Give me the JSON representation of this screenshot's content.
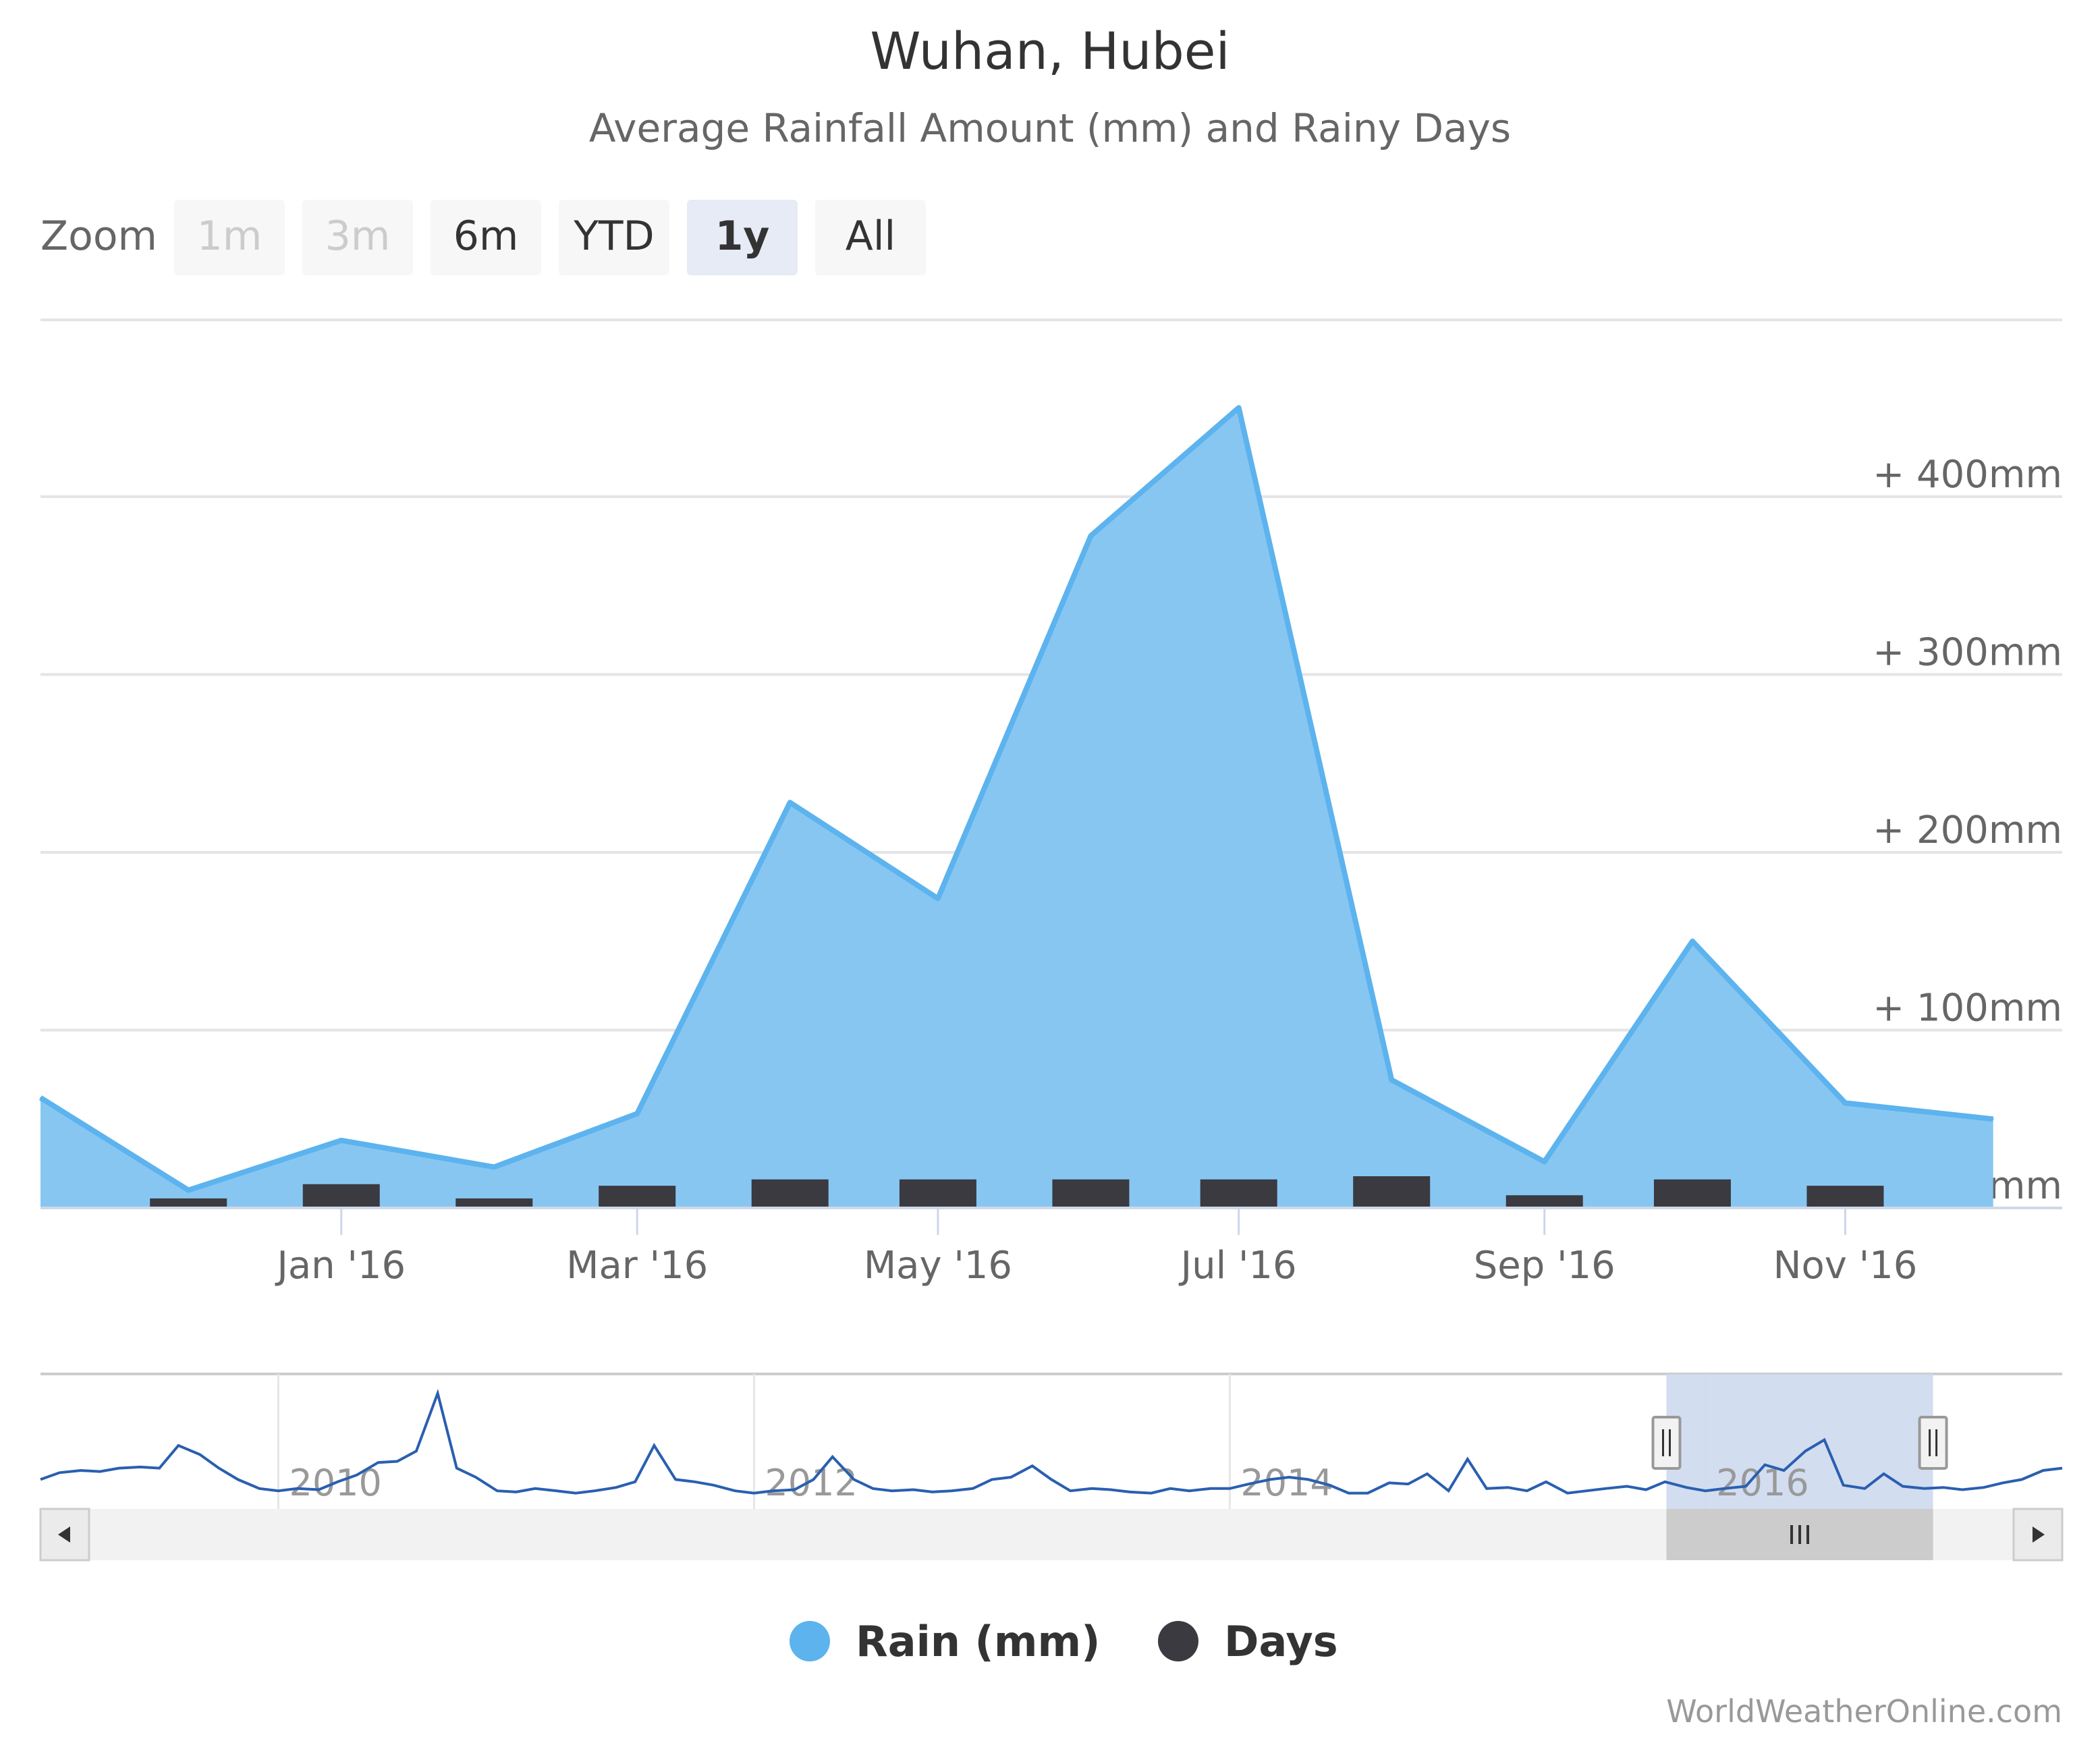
{
  "title": "Wuhan, Hubei",
  "subtitle": "Average Rainfall Amount (mm) and Rainy Days",
  "zoom": {
    "label": "Zoom",
    "buttons": [
      {
        "label": "1m",
        "state": "disabled"
      },
      {
        "label": "3m",
        "state": "disabled"
      },
      {
        "label": "6m",
        "state": "normal"
      },
      {
        "label": "YTD",
        "state": "normal"
      },
      {
        "label": "1y",
        "state": "selected"
      },
      {
        "label": "All",
        "state": "normal"
      }
    ]
  },
  "colors": {
    "rain_fill": "#88c6f2",
    "rain_line": "#5cb3ee",
    "days_bar": "#3a3a40",
    "grid": "#e4e4e4",
    "axis_text": "#666666",
    "navigator_line": "#2a5fb0",
    "navigator_mask": "#cdd9ee",
    "scrollbar_track": "#f2f2f2",
    "scrollbar_thumb": "#cccccc"
  },
  "chart_data": {
    "type": "area",
    "title": "Wuhan, Hubei",
    "subtitle": "Average Rainfall Amount (mm) and Rainy Days",
    "x_range": [
      "2015-11-01",
      "2016-12-15"
    ],
    "ylim": [
      0,
      450
    ],
    "y_ticks": [
      {
        "value": 0,
        "label": "0mm"
      },
      {
        "value": 100,
        "label": "+ 100mm"
      },
      {
        "value": 200,
        "label": "+ 200mm"
      },
      {
        "value": 300,
        "label": "+ 300mm"
      },
      {
        "value": 400,
        "label": "+ 400mm"
      }
    ],
    "x_ticks": [
      {
        "date": "2016-01-01",
        "label": "Jan '16"
      },
      {
        "date": "2016-03-01",
        "label": "Mar '16"
      },
      {
        "date": "2016-05-01",
        "label": "May '16"
      },
      {
        "date": "2016-07-01",
        "label": "Jul '16"
      },
      {
        "date": "2016-09-01",
        "label": "Sep '16"
      },
      {
        "date": "2016-11-01",
        "label": "Nov '16"
      }
    ],
    "grid": true,
    "legend_position": "bottom-center",
    "series": [
      {
        "name": "Rain (mm)",
        "type": "area",
        "points": [
          {
            "date": "2015-11-01",
            "value": 62
          },
          {
            "date": "2015-12-01",
            "value": 10
          },
          {
            "date": "2016-01-01",
            "value": 38
          },
          {
            "date": "2016-02-01",
            "value": 23
          },
          {
            "date": "2016-03-01",
            "value": 53
          },
          {
            "date": "2016-04-01",
            "value": 228
          },
          {
            "date": "2016-05-01",
            "value": 174
          },
          {
            "date": "2016-06-01",
            "value": 378
          },
          {
            "date": "2016-07-01",
            "value": 450
          },
          {
            "date": "2016-08-01",
            "value": 72
          },
          {
            "date": "2016-09-01",
            "value": 26
          },
          {
            "date": "2016-10-01",
            "value": 150
          },
          {
            "date": "2016-11-01",
            "value": 59
          },
          {
            "date": "2016-12-01",
            "value": 50
          }
        ]
      },
      {
        "name": "Days",
        "type": "bar",
        "points": [
          {
            "date": "2015-12-01",
            "value": 6
          },
          {
            "date": "2016-01-01",
            "value": 15
          },
          {
            "date": "2016-02-01",
            "value": 6
          },
          {
            "date": "2016-03-01",
            "value": 14
          },
          {
            "date": "2016-04-01",
            "value": 18
          },
          {
            "date": "2016-05-01",
            "value": 18
          },
          {
            "date": "2016-06-01",
            "value": 18
          },
          {
            "date": "2016-07-01",
            "value": 18
          },
          {
            "date": "2016-08-01",
            "value": 20
          },
          {
            "date": "2016-09-01",
            "value": 8
          },
          {
            "date": "2016-10-01",
            "value": 18
          },
          {
            "date": "2016-11-01",
            "value": 14
          }
        ]
      }
    ],
    "navigator": {
      "x_ticks": [
        "2010",
        "2012",
        "2014",
        "2016"
      ],
      "x_range": [
        2009.0,
        2017.5
      ],
      "selected_range": [
        "2015-11-01",
        "2016-12-15"
      ],
      "series": [
        [
          2009.0,
          0.2
        ],
        [
          2009.08,
          0.26
        ],
        [
          2009.17,
          0.28
        ],
        [
          2009.25,
          0.27
        ],
        [
          2009.33,
          0.3
        ],
        [
          2009.42,
          0.31
        ],
        [
          2009.5,
          0.3
        ],
        [
          2009.58,
          0.5
        ],
        [
          2009.67,
          0.42
        ],
        [
          2009.75,
          0.3
        ],
        [
          2009.83,
          0.2
        ],
        [
          2009.92,
          0.12
        ],
        [
          2010.0,
          0.1
        ],
        [
          2010.08,
          0.12
        ],
        [
          2010.17,
          0.11
        ],
        [
          2010.25,
          0.18
        ],
        [
          2010.33,
          0.24
        ],
        [
          2010.42,
          0.35
        ],
        [
          2010.5,
          0.36
        ],
        [
          2010.58,
          0.45
        ],
        [
          2010.67,
          0.96
        ],
        [
          2010.75,
          0.3
        ],
        [
          2010.83,
          0.22
        ],
        [
          2010.92,
          0.1
        ],
        [
          2011.0,
          0.09
        ],
        [
          2011.08,
          0.12
        ],
        [
          2011.17,
          0.1
        ],
        [
          2011.25,
          0.08
        ],
        [
          2011.33,
          0.1
        ],
        [
          2011.42,
          0.13
        ],
        [
          2011.5,
          0.18
        ],
        [
          2011.58,
          0.5
        ],
        [
          2011.67,
          0.2
        ],
        [
          2011.75,
          0.18
        ],
        [
          2011.83,
          0.15
        ],
        [
          2011.92,
          0.1
        ],
        [
          2012.0,
          0.08
        ],
        [
          2012.08,
          0.1
        ],
        [
          2012.17,
          0.11
        ],
        [
          2012.25,
          0.2
        ],
        [
          2012.33,
          0.4
        ],
        [
          2012.42,
          0.2
        ],
        [
          2012.5,
          0.12
        ],
        [
          2012.58,
          0.1
        ],
        [
          2012.67,
          0.11
        ],
        [
          2012.75,
          0.09
        ],
        [
          2012.83,
          0.1
        ],
        [
          2012.92,
          0.12
        ],
        [
          2013.0,
          0.2
        ],
        [
          2013.08,
          0.22
        ],
        [
          2013.17,
          0.32
        ],
        [
          2013.25,
          0.2
        ],
        [
          2013.33,
          0.1
        ],
        [
          2013.42,
          0.12
        ],
        [
          2013.5,
          0.11
        ],
        [
          2013.58,
          0.09
        ],
        [
          2013.67,
          0.08
        ],
        [
          2013.75,
          0.12
        ],
        [
          2013.83,
          0.1
        ],
        [
          2013.92,
          0.12
        ],
        [
          2014.0,
          0.12
        ],
        [
          2014.08,
          0.16
        ],
        [
          2014.17,
          0.2
        ],
        [
          2014.25,
          0.22
        ],
        [
          2014.33,
          0.2
        ],
        [
          2014.42,
          0.15
        ],
        [
          2014.5,
          0.08
        ],
        [
          2014.58,
          0.08
        ],
        [
          2014.67,
          0.17
        ],
        [
          2014.75,
          0.16
        ],
        [
          2014.83,
          0.25
        ],
        [
          2014.92,
          0.1
        ],
        [
          2015.0,
          0.38
        ],
        [
          2015.08,
          0.12
        ],
        [
          2015.17,
          0.13
        ],
        [
          2015.25,
          0.1
        ],
        [
          2015.33,
          0.18
        ],
        [
          2015.42,
          0.08
        ],
        [
          2015.5,
          0.1
        ],
        [
          2015.58,
          0.12
        ],
        [
          2015.67,
          0.14
        ],
        [
          2015.75,
          0.11
        ],
        [
          2015.83,
          0.18
        ],
        [
          2015.92,
          0.13
        ],
        [
          2016.0,
          0.1
        ],
        [
          2016.08,
          0.12
        ],
        [
          2016.17,
          0.14
        ],
        [
          2016.25,
          0.33
        ],
        [
          2016.33,
          0.28
        ],
        [
          2016.42,
          0.45
        ],
        [
          2016.5,
          0.55
        ],
        [
          2016.58,
          0.15
        ],
        [
          2016.67,
          0.12
        ],
        [
          2016.75,
          0.25
        ],
        [
          2016.83,
          0.14
        ],
        [
          2016.92,
          0.12
        ],
        [
          2017.0,
          0.13
        ],
        [
          2017.08,
          0.11
        ],
        [
          2017.17,
          0.13
        ],
        [
          2017.25,
          0.17
        ],
        [
          2017.33,
          0.2
        ],
        [
          2017.42,
          0.28
        ],
        [
          2017.5,
          0.3
        ]
      ]
    }
  },
  "legend": {
    "items": [
      {
        "label": "Rain (mm)",
        "color": "#5cb3ee"
      },
      {
        "label": "Days",
        "color": "#3a3a40"
      }
    ]
  },
  "credit": "WorldWeatherOnline.com"
}
